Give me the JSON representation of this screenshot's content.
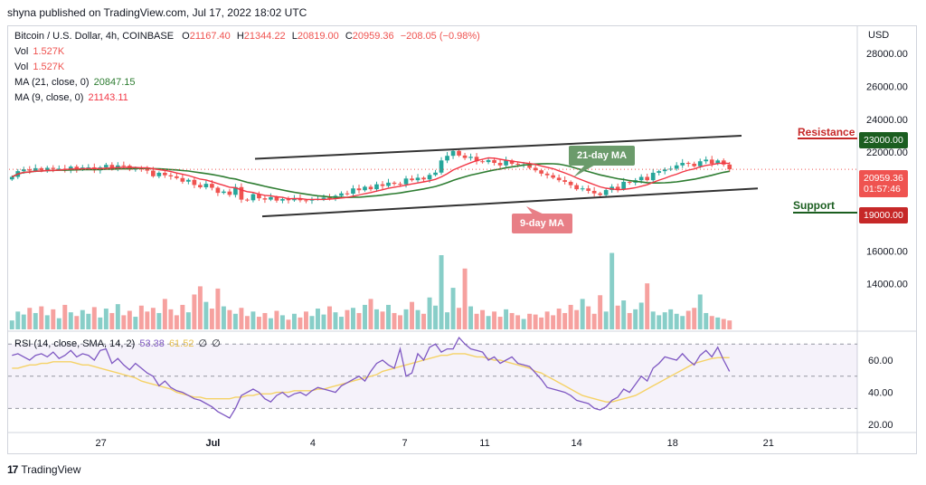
{
  "header": {
    "publisher": "shyna published on TradingView.com, Jul 17, 2022 18:02 UTC"
  },
  "legend": {
    "symbol": "Bitcoin / U.S. Dollar, 4h, COINBASE",
    "o_label": "O",
    "o": "21167.40",
    "h_label": "H",
    "h": "21344.22",
    "l_label": "L",
    "l": "20819.00",
    "c_label": "C",
    "c": "20959.36",
    "change": "−208.05 (−0.98%)",
    "vol1_label": "Vol",
    "vol1": "1.527K",
    "vol2_label": "Vol",
    "vol2": "1.527K",
    "ma21_label": "MA (21, close, 0)",
    "ma21": "20847.15",
    "ma9_label": "MA (9, close, 0)",
    "ma9": "21143.11",
    "rsi_label": "RSI (14, close, SMA, 14, 2)",
    "rsi": "53.38",
    "rsi_sma": "61.52",
    "rsi_x1": "∅",
    "rsi_x2": "∅"
  },
  "price_axis": {
    "currency": "USD",
    "price_tag": "20959.36",
    "countdown": "01:57:46",
    "resistance_tag": "23000.00",
    "support_tag": "19000.00"
  },
  "annotations": {
    "resistance": "Resistance",
    "support": "Support",
    "ma21_callout": "21-day MA",
    "ma9_callout": "9-day MA"
  },
  "footer": {
    "brand": "TradingView",
    "logo_text": "17"
  },
  "colors": {
    "up": "#26a69a",
    "down": "#ef5350",
    "ma9": "#f23645",
    "ma21": "#2e7d32",
    "rsi": "#7e57c2",
    "rsi_sma": "#f5d266",
    "channel": "#333333",
    "callout_green": "#6b9b6b",
    "callout_red": "#e87f86"
  },
  "chart_data": {
    "type": "candlestick",
    "timeframe": "4h",
    "x_ticks": [
      "27",
      "Jul",
      "4",
      "7",
      "11",
      "14",
      "18",
      "21"
    ],
    "y_ticks": [
      "28000.00",
      "26000.00",
      "24000.00",
      "22000.00",
      "20000.00",
      "18000.00",
      "16000.00",
      "14000.00"
    ],
    "price_ylim": [
      12500,
      28500
    ],
    "rsi_ticks": [
      "60.00",
      "40.00",
      "20.00"
    ],
    "rsi_ylim": [
      15,
      78
    ],
    "rsi_bands": [
      30,
      50,
      70
    ],
    "close": [
      20500,
      20850,
      20960,
      20880,
      21030,
      20910,
      21050,
      20980,
      21000,
      20890,
      21120,
      20950,
      21070,
      21080,
      20900,
      21080,
      21230,
      21010,
      21200,
      21180,
      20940,
      21010,
      20970,
      20880,
      20540,
      20750,
      20600,
      20530,
      20430,
      20210,
      20320,
      20010,
      19870,
      20080,
      19840,
      19530,
      19610,
      19410,
      19880,
      19120,
      19080,
      19450,
      19200,
      19120,
      19270,
      19060,
      19150,
      19080,
      19200,
      19080,
      19060,
      19150,
      19160,
      19240,
      19230,
      19350,
      19500,
      19480,
      19800,
      19690,
      19900,
      19750,
      20050,
      19950,
      20150,
      20080,
      20050,
      20400,
      20300,
      20450,
      20350,
      20620,
      20760,
      21500,
      21780,
      22080,
      21800,
      21650,
      21720,
      21450,
      21400,
      21520,
      21350,
      21200,
      21500,
      21300,
      21250,
      21250,
      21050,
      20900,
      20700,
      20600,
      20450,
      20300,
      20200,
      20000,
      19750,
      19800,
      19650,
      19500,
      19400,
      19700,
      19900,
      19750,
      20200,
      20150,
      20300,
      20500,
      20300,
      20750,
      20850,
      20950,
      21000,
      21200,
      21350,
      21300,
      21150,
      21450,
      21550,
      21300,
      21500,
      21250,
      20960
    ],
    "volume_rel": [
      0.12,
      0.24,
      0.2,
      0.29,
      0.22,
      0.31,
      0.19,
      0.27,
      0.15,
      0.33,
      0.23,
      0.18,
      0.26,
      0.21,
      0.3,
      0.16,
      0.28,
      0.22,
      0.34,
      0.19,
      0.25,
      0.17,
      0.32,
      0.24,
      0.29,
      0.22,
      0.41,
      0.27,
      0.19,
      0.33,
      0.23,
      0.47,
      0.58,
      0.37,
      0.28,
      0.55,
      0.31,
      0.26,
      0.21,
      0.29,
      0.18,
      0.24,
      0.17,
      0.22,
      0.15,
      0.25,
      0.19,
      0.13,
      0.21,
      0.16,
      0.24,
      0.18,
      0.28,
      0.2,
      0.31,
      0.23,
      0.17,
      0.26,
      0.29,
      0.22,
      0.33,
      0.41,
      0.27,
      0.24,
      0.33,
      0.22,
      0.19,
      0.27,
      0.37,
      0.26,
      0.21,
      0.43,
      0.32,
      1.0,
      0.23,
      0.56,
      0.29,
      0.82,
      0.31,
      0.21,
      0.26,
      0.18,
      0.24,
      0.17,
      0.27,
      0.22,
      0.19,
      0.14,
      0.21,
      0.2,
      0.16,
      0.24,
      0.19,
      0.28,
      0.22,
      0.33,
      0.26,
      0.41,
      0.31,
      0.21,
      0.46,
      0.24,
      1.03,
      0.32,
      0.39,
      0.22,
      0.27,
      0.36,
      0.62,
      0.24,
      0.19,
      0.23,
      0.27,
      0.21,
      0.18,
      0.25,
      0.29,
      0.47,
      0.22,
      0.18,
      0.16,
      0.14,
      0.12
    ],
    "rsi": [
      63,
      64,
      62,
      60,
      63,
      64,
      62,
      65,
      61,
      63,
      66,
      62,
      64,
      63,
      60,
      66,
      67,
      58,
      61,
      57,
      54,
      58,
      55,
      52,
      50,
      44,
      47,
      43,
      41,
      40,
      38,
      36,
      35,
      33,
      31,
      28,
      26,
      24,
      30,
      38,
      40,
      42,
      40,
      36,
      34,
      38,
      40,
      37,
      39,
      40,
      38,
      41,
      43,
      42,
      41,
      40,
      44,
      46,
      48,
      50,
      47,
      53,
      58,
      60,
      57,
      55,
      67,
      50,
      52,
      64,
      60,
      68,
      70,
      65,
      67,
      67,
      74,
      70,
      67,
      66,
      65,
      60,
      62,
      58,
      60,
      62,
      58,
      57,
      56,
      52,
      48,
      43,
      42,
      41,
      40,
      38,
      35,
      34,
      33,
      30,
      29,
      31,
      35,
      37,
      42,
      40,
      45,
      50,
      47,
      55,
      58,
      62,
      61,
      60,
      64,
      60,
      57,
      63,
      66,
      62,
      68,
      60,
      53
    ],
    "rsi_sma": [
      55,
      55,
      56,
      57,
      57,
      58,
      58,
      59,
      59,
      59,
      59,
      58,
      57,
      57,
      56,
      55,
      54,
      53,
      52,
      51,
      50,
      49,
      47,
      46,
      45,
      44,
      43,
      42,
      40,
      39,
      38,
      37,
      37,
      36,
      36,
      36,
      36,
      36,
      37,
      37,
      38,
      38,
      39,
      39,
      39,
      40,
      40,
      40,
      41,
      41,
      41,
      41,
      42,
      42,
      43,
      44,
      45,
      46,
      47,
      48,
      49,
      50,
      51,
      53,
      54,
      55,
      56,
      57,
      58,
      59,
      60,
      61,
      62,
      63,
      63,
      64,
      64,
      64,
      63,
      62,
      62,
      61,
      60,
      60,
      59,
      58,
      57,
      56,
      55,
      53,
      52,
      50,
      48,
      46,
      44,
      42,
      40,
      38,
      37,
      36,
      35,
      34,
      34,
      35,
      36,
      37,
      38,
      40,
      42,
      44,
      46,
      48,
      50,
      52,
      54,
      56,
      58,
      59,
      60,
      61,
      61.5,
      61.6,
      61.52
    ],
    "channel_upper": {
      "from": {
        "x": "Jul 2",
        "price": 21600
      },
      "to": {
        "x": "Jul 18",
        "price": 23000
      }
    },
    "channel_lower": {
      "from": {
        "x": "Jul 2",
        "price": 18100
      },
      "to": {
        "x": "Jul 19",
        "price": 19800
      }
    },
    "resistance": 23000,
    "support": 19000,
    "last_price": 20959.36
  }
}
